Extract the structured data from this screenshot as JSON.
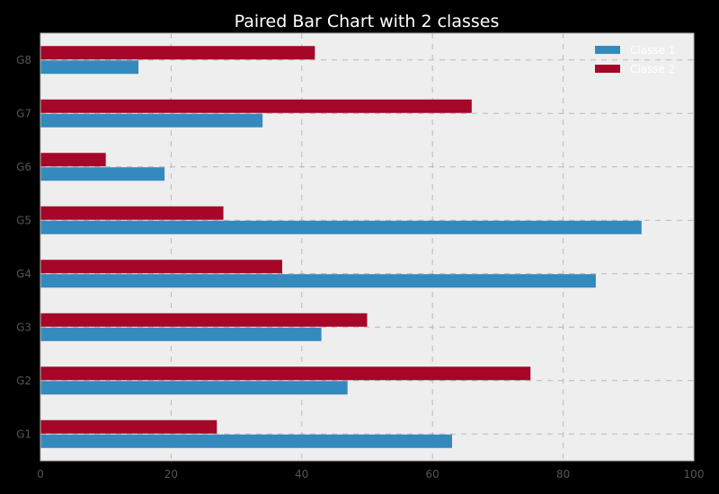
{
  "chart_data": {
    "type": "bar",
    "orientation": "horizontal",
    "title": "Paired Bar Chart with 2 classes",
    "xlabel": "",
    "ylabel": "",
    "categories": [
      "G1",
      "G2",
      "G3",
      "G4",
      "G5",
      "G6",
      "G7",
      "G8"
    ],
    "series": [
      {
        "name": "Classe 1",
        "color": "#348ABD",
        "values": [
          63,
          47,
          43,
          85,
          92,
          19,
          34,
          15
        ]
      },
      {
        "name": "Classe 2",
        "color": "#A60628",
        "values": [
          27,
          75,
          50,
          37,
          28,
          10,
          66,
          42
        ]
      }
    ],
    "xlim": [
      0,
      100
    ],
    "xticks": [
      "0",
      "20",
      "40",
      "60",
      "80",
      "100"
    ],
    "grid": true,
    "legend_position": "top-right",
    "background_color": "#EEEEEE",
    "figure_color": "#000000"
  }
}
